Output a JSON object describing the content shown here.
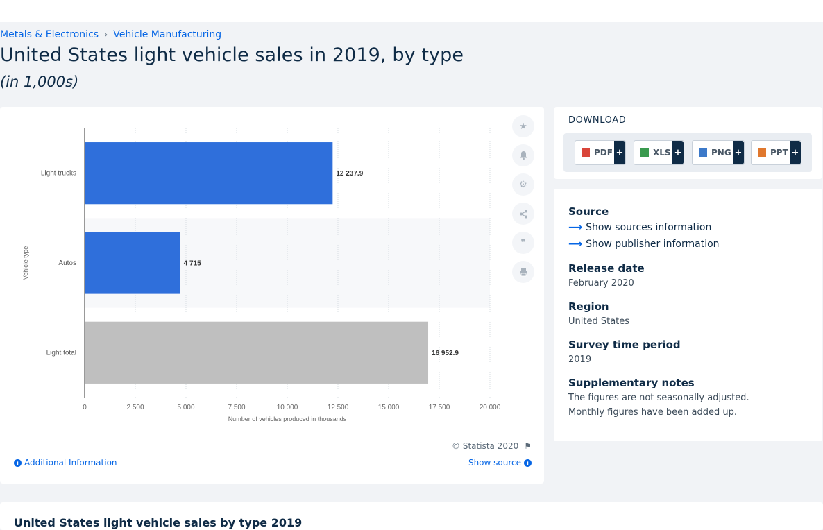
{
  "breadcrumb": {
    "items": [
      "Metals & Electronics",
      "Vehicle Manufacturing"
    ],
    "separator": "›"
  },
  "header": {
    "title": "United States light vehicle sales in 2019, by type",
    "subtitle": "(in 1,000s)"
  },
  "chart_data": {
    "type": "bar",
    "orientation": "horizontal",
    "categories": [
      "Light trucks",
      "Autos",
      "Light total"
    ],
    "values": [
      12237.9,
      4715,
      16952.9
    ],
    "value_labels": [
      "12 237.9",
      "4 715",
      "16 952.9"
    ],
    "colors": [
      "#2f6fdb",
      "#2f6fdb",
      "#bfbfbf"
    ],
    "xlabel": "Number of vehicles produced in thousands",
    "ylabel": "Vehicle type",
    "xlim": [
      0,
      20000
    ],
    "xticks": [
      0,
      2500,
      5000,
      7500,
      10000,
      12500,
      15000,
      17500,
      20000
    ],
    "xtick_labels": [
      "0",
      "2 500",
      "5 000",
      "7 500",
      "10 000",
      "12 500",
      "15 000",
      "17 500",
      "20 000"
    ],
    "grid": "vertical"
  },
  "chart_footer": {
    "copyright": "© Statista 2020",
    "additional_info": "Additional Information",
    "show_source": "Show source"
  },
  "tools": [
    "star-icon",
    "bell-icon",
    "gear-icon",
    "share-icon",
    "quote-icon",
    "print-icon"
  ],
  "download": {
    "title": "DOWNLOAD",
    "buttons": [
      {
        "label": "PDF",
        "icon": "pdf-icon",
        "color": "#d9453a"
      },
      {
        "label": "XLS",
        "icon": "xls-icon",
        "color": "#3a9a4e"
      },
      {
        "label": "PNG",
        "icon": "png-icon",
        "color": "#3c79c9"
      },
      {
        "label": "PPT",
        "icon": "ppt-icon",
        "color": "#e0782e"
      }
    ],
    "plus": "+"
  },
  "info": {
    "source_label": "Source",
    "show_sources": "Show sources information",
    "show_publisher": "Show publisher information",
    "release_label": "Release date",
    "release_value": "February 2020",
    "region_label": "Region",
    "region_value": "United States",
    "survey_label": "Survey time period",
    "survey_value": "2019",
    "notes_label": "Supplementary notes",
    "notes_line1": "The figures are not seasonally adjusted.",
    "notes_line2": "Monthly figures have been added up."
  },
  "bottom": {
    "title": "United States light vehicle sales by type 2019"
  }
}
